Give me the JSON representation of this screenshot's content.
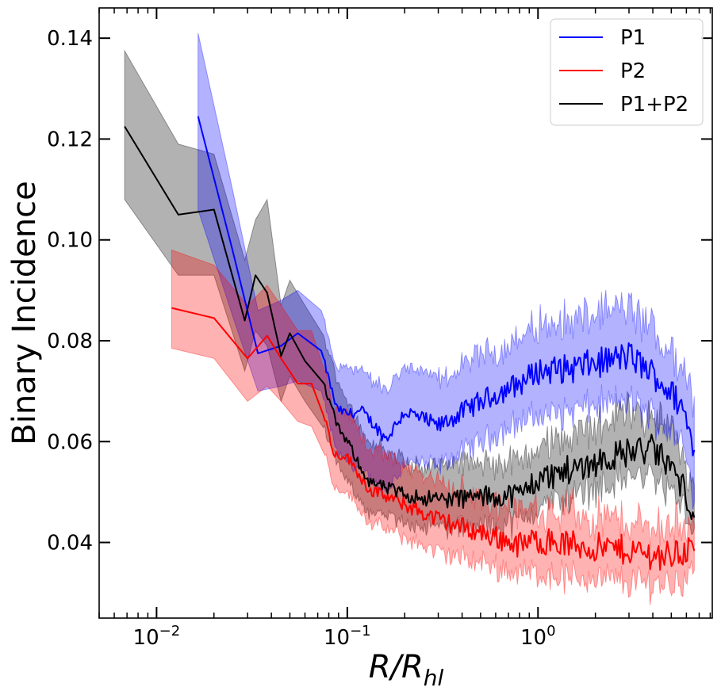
{
  "chart_data": {
    "type": "line",
    "xscale": "log",
    "xlabel_main": "R/R",
    "xlabel_sub": "hl",
    "ylabel": "Binary Incidence",
    "xlim": [
      0.005,
      8.2
    ],
    "ylim": [
      0.025,
      0.146
    ],
    "x_ticks": [
      {
        "value": 0.01,
        "base": "10",
        "exp": "−2"
      },
      {
        "value": 0.1,
        "base": "10",
        "exp": "−1"
      },
      {
        "value": 1,
        "base": "10",
        "exp": "0"
      }
    ],
    "y_ticks": [
      {
        "value": 0.04,
        "label": "0.04"
      },
      {
        "value": 0.06,
        "label": "0.06"
      },
      {
        "value": 0.08,
        "label": "0.08"
      },
      {
        "value": 0.1,
        "label": "0.10"
      },
      {
        "value": 0.12,
        "label": "0.12"
      },
      {
        "value": 0.14,
        "label": "0.14"
      }
    ],
    "legend_position": "top-right",
    "series": [
      {
        "name": "P1",
        "color": "#0000ff",
        "band_color": "#0000ff",
        "x": [
          0.0165,
          0.025,
          0.034,
          0.045,
          0.055,
          0.073,
          0.088,
          0.1,
          0.12,
          0.16,
          0.2,
          0.3,
          0.5,
          0.8,
          1.0,
          1.5,
          2.0,
          3.0,
          4.0,
          5.0,
          5.7,
          6.6
        ],
        "y": [
          0.1245,
          0.098,
          0.0775,
          0.079,
          0.0815,
          0.078,
          0.0665,
          0.0655,
          0.066,
          0.0605,
          0.066,
          0.063,
          0.068,
          0.0715,
          0.074,
          0.0745,
          0.0755,
          0.077,
          0.0735,
          0.0695,
          0.067,
          0.0585
        ],
        "lower": [
          0.106,
          0.085,
          0.07,
          0.071,
          0.072,
          0.07,
          0.058,
          0.056,
          0.054,
          0.05,
          0.056,
          0.055,
          0.06,
          0.064,
          0.065,
          0.066,
          0.067,
          0.068,
          0.065,
          0.062,
          0.06,
          0.049
        ],
        "upper": [
          0.141,
          0.11,
          0.086,
          0.088,
          0.09,
          0.086,
          0.074,
          0.075,
          0.074,
          0.07,
          0.075,
          0.072,
          0.077,
          0.08,
          0.083,
          0.084,
          0.085,
          0.086,
          0.082,
          0.078,
          0.076,
          0.068
        ]
      },
      {
        "name": "P2",
        "color": "#ff0000",
        "band_color": "#ff0000",
        "x": [
          0.012,
          0.02,
          0.03,
          0.038,
          0.045,
          0.055,
          0.065,
          0.075,
          0.085,
          0.1,
          0.13,
          0.2,
          0.3,
          0.5,
          0.8,
          1.0,
          1.5,
          2.0,
          3.0,
          4.0,
          5.0,
          6.6
        ],
        "y": [
          0.0865,
          0.0845,
          0.0765,
          0.081,
          0.0765,
          0.0715,
          0.0715,
          0.066,
          0.0575,
          0.057,
          0.0505,
          0.0475,
          0.0445,
          0.042,
          0.0395,
          0.0405,
          0.0395,
          0.039,
          0.0385,
          0.0375,
          0.0375,
          0.039
        ],
        "lower": [
          0.0785,
          0.0765,
          0.068,
          0.071,
          0.068,
          0.064,
          0.063,
          0.059,
          0.051,
          0.05,
          0.044,
          0.041,
          0.038,
          0.036,
          0.034,
          0.034,
          0.033,
          0.033,
          0.032,
          0.032,
          0.032,
          0.034
        ],
        "upper": [
          0.098,
          0.095,
          0.087,
          0.091,
          0.087,
          0.082,
          0.082,
          0.076,
          0.066,
          0.066,
          0.059,
          0.055,
          0.052,
          0.049,
          0.046,
          0.047,
          0.046,
          0.045,
          0.044,
          0.043,
          0.043,
          0.0445
        ]
      },
      {
        "name": "P1+P2",
        "color": "#000000",
        "band_color": "#000000",
        "x": [
          0.0068,
          0.013,
          0.02,
          0.029,
          0.033,
          0.038,
          0.045,
          0.05,
          0.06,
          0.075,
          0.09,
          0.1,
          0.13,
          0.2,
          0.3,
          0.5,
          0.8,
          1.0,
          1.5,
          2.0,
          3.0,
          4.0,
          5.0,
          6.6
        ],
        "y": [
          0.1225,
          0.105,
          0.106,
          0.084,
          0.093,
          0.0895,
          0.077,
          0.0815,
          0.076,
          0.0715,
          0.0625,
          0.06,
          0.052,
          0.0495,
          0.0485,
          0.049,
          0.0495,
          0.0525,
          0.0545,
          0.056,
          0.058,
          0.0585,
          0.055,
          0.0465
        ],
        "lower": [
          0.108,
          0.093,
          0.093,
          0.074,
          0.082,
          0.079,
          0.068,
          0.073,
          0.068,
          0.063,
          0.055,
          0.052,
          0.046,
          0.044,
          0.043,
          0.043,
          0.044,
          0.047,
          0.049,
          0.051,
          0.053,
          0.053,
          0.05,
          0.043
        ],
        "upper": [
          0.1375,
          0.119,
          0.117,
          0.096,
          0.104,
          0.108,
          0.087,
          0.092,
          0.087,
          0.081,
          0.071,
          0.068,
          0.06,
          0.056,
          0.055,
          0.056,
          0.056,
          0.059,
          0.061,
          0.063,
          0.066,
          0.065,
          0.062,
          0.052
        ]
      }
    ]
  }
}
